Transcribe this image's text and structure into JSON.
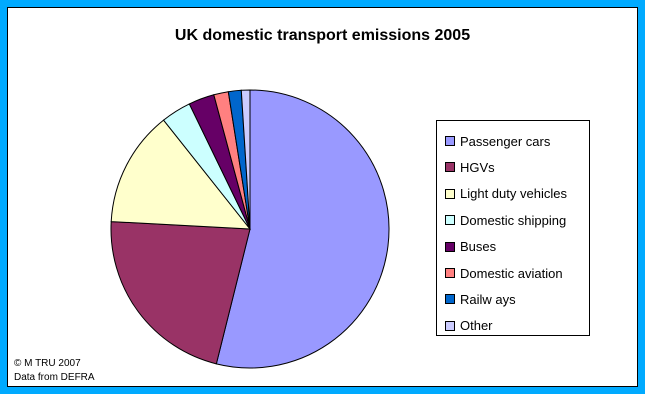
{
  "chart_data": {
    "type": "pie",
    "title": "UK domestic transport emissions 2005",
    "categories": [
      "Passenger cars",
      "HGVs",
      "Light duty vehicles",
      "Domestic shipping",
      "Buses",
      "Domestic aviation",
      "Railw ays",
      "Other"
    ],
    "values": [
      54,
      22,
      13.5,
      3.5,
      3,
      1.7,
      1.5,
      1
    ],
    "colors": [
      "#9999ff",
      "#993366",
      "#ffffcc",
      "#ccffff",
      "#660066",
      "#ff8080",
      "#0066cc",
      "#ccccff"
    ],
    "legend_position": "right",
    "start_angle": "12 o'clock",
    "direction": "clockwise"
  },
  "credit": {
    "line1": "© M TRU 2007",
    "line2": "Data from DEFRA"
  }
}
